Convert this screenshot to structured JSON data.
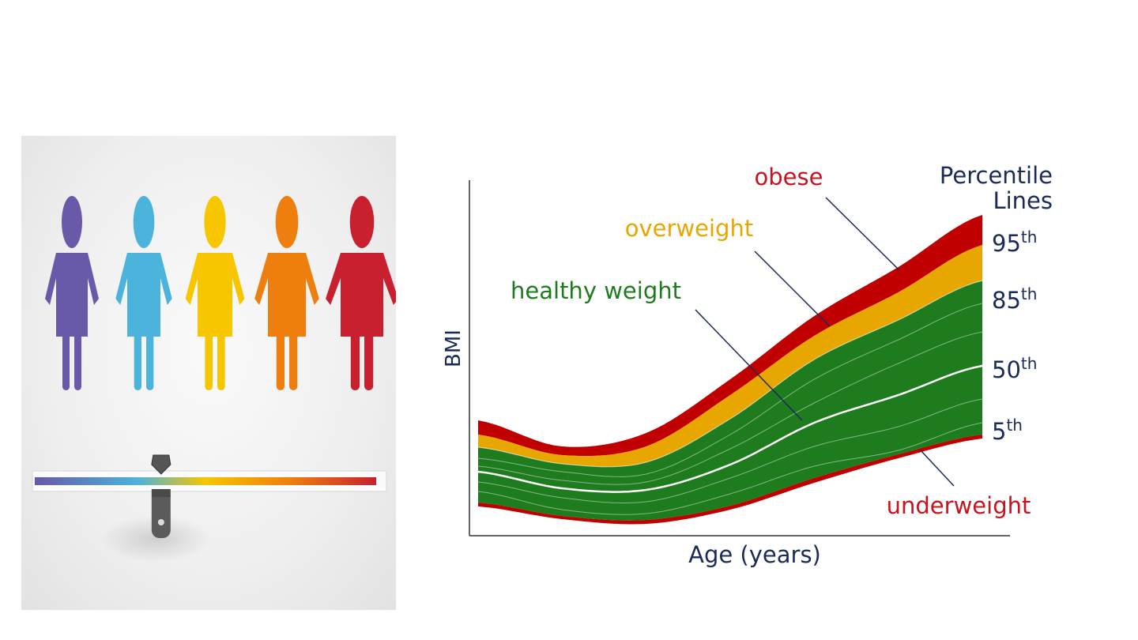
{
  "figures": {
    "people_colors": [
      "#6a58a8",
      "#4cb3dc",
      "#f7c600",
      "#ee7f0e",
      "#c8202f"
    ],
    "scale_gradient": [
      "#6a58a8",
      "#4cb3dc",
      "#f7c600",
      "#ee7f0e",
      "#c8202f"
    ],
    "slider_icon": "scale-slider-icon",
    "slider_position": 0.37
  },
  "chart": {
    "ylabel": "BMI",
    "xlabel": "Age (years)",
    "legend_title_line1": "Percentile",
    "legend_title_line2": "Lines",
    "percentiles": [
      {
        "base": "95",
        "sup": "th"
      },
      {
        "base": "85",
        "sup": "th"
      },
      {
        "base": "50",
        "sup": "th"
      },
      {
        "base": "5",
        "sup": "th"
      }
    ],
    "regions": [
      {
        "label": "obese",
        "color": "#c00000"
      },
      {
        "label": "overweight",
        "color": "#e8a600"
      },
      {
        "label": "healthy weight",
        "color": "#1e7c1e"
      },
      {
        "label": "underweight",
        "color": "#c00000"
      }
    ],
    "label_colors": {
      "axis": "#1a2b5a",
      "obese": "#c8141e",
      "overweight": "#e8a600",
      "healthy": "#1e7c1e",
      "underweight": "#c8141e"
    }
  }
}
